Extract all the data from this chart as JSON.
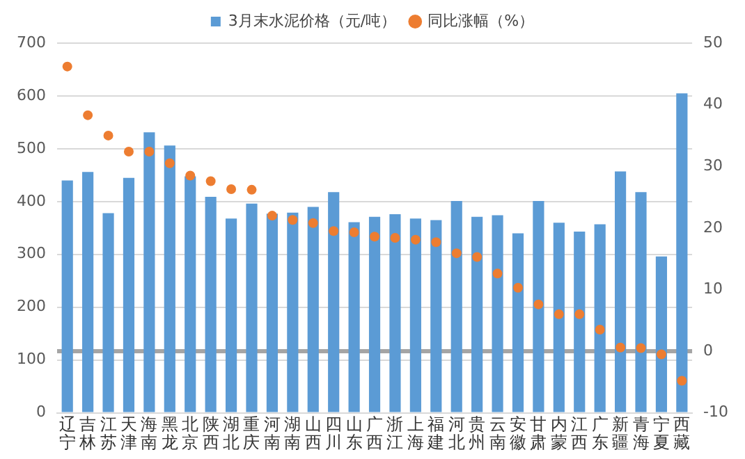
{
  "chart_data": {
    "type": "bar",
    "categories": [
      "辽宁",
      "吉林",
      "江苏",
      "天津",
      "海南",
      "黑龙",
      "北京",
      "陕西",
      "湖北",
      "重庆",
      "河南",
      "湖南",
      "山西",
      "四川",
      "山东",
      "广西",
      "浙江",
      "上海",
      "福建",
      "河北",
      "贵州",
      "云南",
      "安徽",
      "甘肃",
      "内蒙",
      "江西",
      "广东",
      "新疆",
      "青海",
      "宁夏",
      "西藏"
    ],
    "series": [
      {
        "name": "3月末水泥价格（元/吨）",
        "color": "#5b9bd5",
        "values": [
          440,
          456,
          378,
          445,
          531,
          506,
          448,
          409,
          368,
          396,
          377,
          379,
          390,
          418,
          361,
          371,
          376,
          368,
          365,
          401,
          371,
          374,
          340,
          401,
          360,
          343,
          357,
          457,
          418,
          296,
          605
        ]
      },
      {
        "name": "同比涨幅（%）",
        "type": "scatter",
        "axis": "y2",
        "color": "#ed7d31",
        "values": [
          46.2,
          38.3,
          35.0,
          32.4,
          32.4,
          30.5,
          28.5,
          27.6,
          26.3,
          26.2,
          22.0,
          21.3,
          20.8,
          19.5,
          19.3,
          18.6,
          18.4,
          18.1,
          17.7,
          15.9,
          15.3,
          12.6,
          10.3,
          7.6,
          6.0,
          6.0,
          3.5,
          0.6,
          0.5,
          -0.5,
          -4.8
        ]
      }
    ],
    "ylim": [
      0,
      700
    ],
    "yticks": [
      0,
      100,
      200,
      300,
      400,
      500,
      600,
      700
    ],
    "y2lim": [
      -10,
      50
    ],
    "y2ticks": [
      -10,
      0,
      10,
      20,
      30,
      40,
      50
    ],
    "ref_lines": [
      {
        "axis": "y2",
        "value": 0,
        "color": "#a5a5a5"
      }
    ],
    "grid": "y",
    "legend": "top",
    "marker": "circle"
  }
}
